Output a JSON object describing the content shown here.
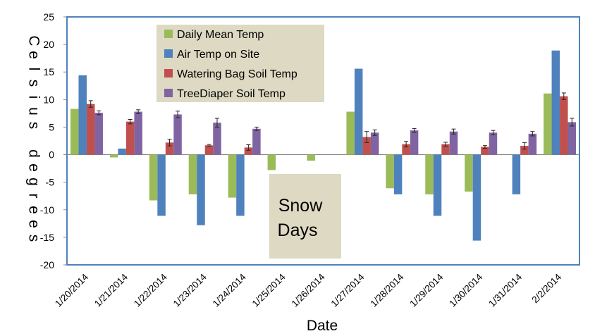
{
  "chart_data": {
    "type": "bar",
    "title": "",
    "xlabel": "Date",
    "ylabel": "Celsius degrees",
    "ylim": [
      -20,
      25
    ],
    "ytick_step": 5,
    "grid": false,
    "legend_placement": "top-center",
    "categories": [
      "1/20/2014",
      "1/21/2014",
      "1/22/2014",
      "1/23/2014",
      "1/24/2014",
      "1/25/2014",
      "1/26/2014",
      "1/27/2014",
      "1/28/2014",
      "1/29/2014",
      "1/30/2014",
      "1/31/2014",
      "2/2/2014"
    ],
    "series": [
      {
        "name": "Daily Mean Temp",
        "color": "#9BBB59",
        "values": [
          8.3,
          -0.5,
          -8.3,
          -7.2,
          -7.8,
          -2.8,
          -1.1,
          7.8,
          -6.1,
          -7.2,
          -6.7,
          null,
          11.1
        ]
      },
      {
        "name": "Air Temp on Site",
        "color": "#4F81BD",
        "values": [
          14.4,
          1.1,
          -11.1,
          -12.8,
          -11.1,
          null,
          null,
          15.6,
          -7.2,
          -11.1,
          -15.6,
          -7.2,
          18.9
        ]
      },
      {
        "name": "Watering Bag Soil Temp",
        "color": "#C0504D",
        "values": [
          9.2,
          6.0,
          2.2,
          1.7,
          1.3,
          null,
          null,
          3.2,
          1.9,
          1.9,
          1.4,
          1.6,
          10.6
        ],
        "errors": [
          0.6,
          0.4,
          0.6,
          0.15,
          0.5,
          null,
          null,
          1.0,
          0.5,
          0.35,
          0.25,
          0.6,
          0.6
        ]
      },
      {
        "name": "TreeDiaper Soil Temp",
        "color": "#8064A2",
        "values": [
          7.6,
          7.8,
          7.3,
          5.8,
          4.7,
          null,
          null,
          4.0,
          4.4,
          4.2,
          4.0,
          3.8,
          5.9
        ],
        "errors": [
          0.35,
          0.35,
          0.6,
          0.8,
          0.3,
          null,
          null,
          0.5,
          0.35,
          0.45,
          0.4,
          0.4,
          0.7
        ]
      }
    ],
    "annotation": {
      "line1": "Snow",
      "line2": "Days"
    }
  }
}
